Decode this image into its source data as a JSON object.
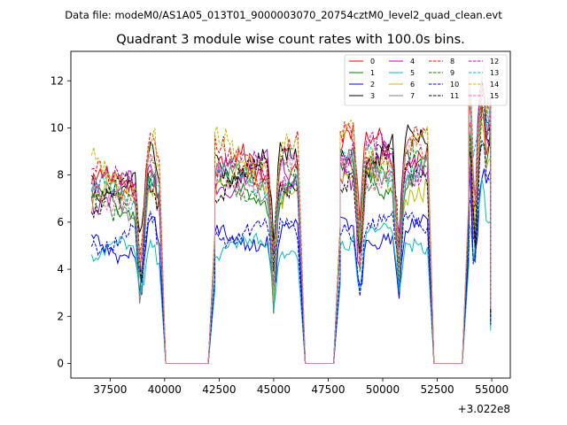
{
  "figure": {
    "suptitle": "Data file: modeM0/AS1A05_013T01_9000003070_20754cztM0_level2_quad_clean.evt",
    "offset_label": "+3.022e8"
  },
  "chart_data": {
    "type": "line",
    "title": "Quadrant 3 module wise count rates with 100.0s bins.",
    "xlabel": "",
    "ylabel": "",
    "x_offset": 302200000,
    "xlim": [
      35700,
      55850
    ],
    "ylim": [
      -0.62,
      13.25
    ],
    "xticks": [
      37500,
      40000,
      42500,
      45000,
      47500,
      50000,
      52500,
      55000
    ],
    "xtick_labels": [
      "37500",
      "40000",
      "42500",
      "45000",
      "47500",
      "50000",
      "52500",
      "55000"
    ],
    "yticks": [
      0,
      2,
      4,
      6,
      8,
      10,
      12
    ],
    "ytick_labels": [
      "0",
      "2",
      "4",
      "6",
      "8",
      "10",
      "12"
    ],
    "grid": false,
    "legend_position": "top-right",
    "legend_columns": 4,
    "segments": [
      {
        "x_start": 36650,
        "x_end": 39750,
        "gap_after": true
      },
      {
        "x_start": 42300,
        "x_end": 46150,
        "gap_after": true
      },
      {
        "x_start": 48050,
        "x_end": 52050,
        "gap_after": true
      },
      {
        "x_start": 53950,
        "x_end": 54950,
        "gap_after": false
      }
    ],
    "dips": [
      38900,
      45000,
      48950,
      50750,
      54250
    ],
    "series": [
      {
        "name": "0",
        "color": "#ff0000",
        "dash": "solid",
        "levels": [
          7.9,
          8.7,
          9.7,
          10.7
        ]
      },
      {
        "name": "1",
        "color": "#008000",
        "dash": "solid",
        "levels": [
          7.1,
          7.6,
          8.4,
          9.6
        ]
      },
      {
        "name": "2",
        "color": "#0000ff",
        "dash": "solid",
        "levels": [
          5.2,
          5.7,
          5.9,
          8.0
        ]
      },
      {
        "name": "3",
        "color": "#000000",
        "dash": "solid",
        "levels": [
          8.0,
          8.9,
          9.5,
          10.4
        ]
      },
      {
        "name": "4",
        "color": "#bf00bf",
        "dash": "solid",
        "levels": [
          7.6,
          8.5,
          9.0,
          10.2
        ]
      },
      {
        "name": "5",
        "color": "#00bfbf",
        "dash": "solid",
        "levels": [
          5.0,
          5.2,
          5.6,
          7.0
        ]
      },
      {
        "name": "6",
        "color": "#bfbf00",
        "dash": "solid",
        "levels": [
          7.3,
          7.9,
          8.1,
          10.0
        ]
      },
      {
        "name": "7",
        "color": "#808080",
        "dash": "solid",
        "levels": [
          7.2,
          8.0,
          8.6,
          11.0
        ]
      },
      {
        "name": "8",
        "color": "#ff0000",
        "dash": "dashed",
        "levels": [
          8.3,
          9.1,
          9.6,
          11.2
        ]
      },
      {
        "name": "9",
        "color": "#008000",
        "dash": "dashed",
        "levels": [
          7.4,
          8.2,
          8.8,
          9.9
        ]
      },
      {
        "name": "10",
        "color": "#0000ff",
        "dash": "dashed",
        "levels": [
          5.6,
          6.0,
          6.3,
          8.3
        ]
      },
      {
        "name": "11",
        "color": "#000000",
        "dash": "dashed",
        "levels": [
          7.5,
          8.3,
          8.7,
          10.8
        ]
      },
      {
        "name": "12",
        "color": "#bf00bf",
        "dash": "dashed",
        "levels": [
          7.8,
          8.6,
          9.2,
          11.4
        ]
      },
      {
        "name": "13",
        "color": "#00bfbf",
        "dash": "dashed",
        "levels": [
          7.5,
          8.1,
          8.9,
          11.8
        ]
      },
      {
        "name": "14",
        "color": "#bfbf00",
        "dash": "dashed",
        "levels": [
          8.5,
          9.4,
          9.8,
          11.6
        ]
      },
      {
        "name": "15",
        "color": "#ff69b4",
        "dash": "dashed",
        "levels": [
          7.7,
          8.4,
          8.9,
          11.7
        ]
      }
    ]
  }
}
